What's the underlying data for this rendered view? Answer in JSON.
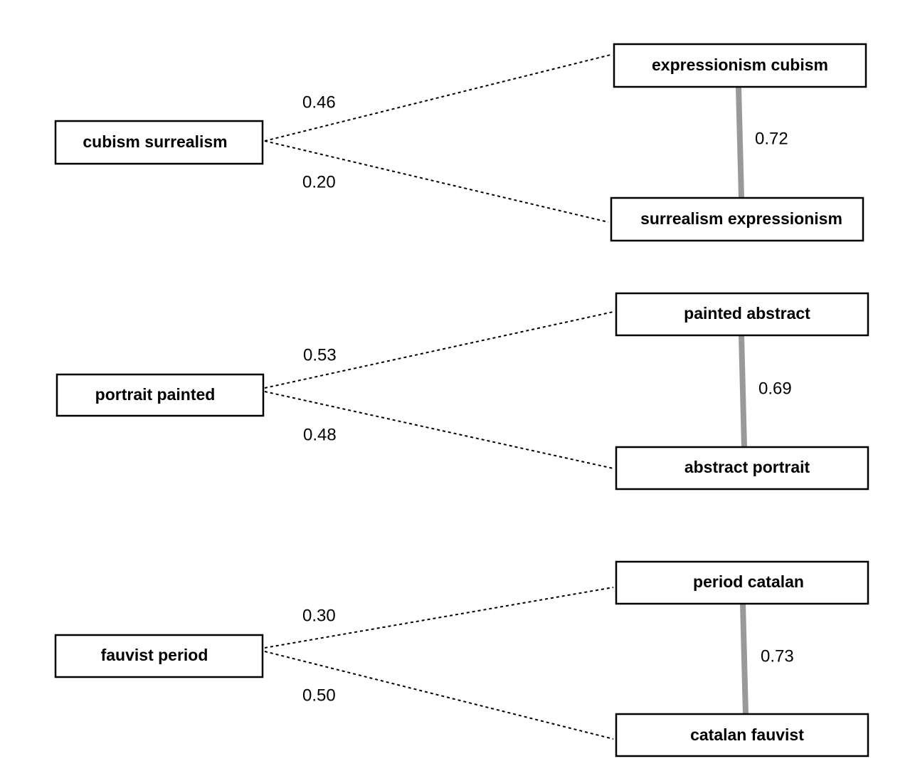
{
  "diagram": {
    "groups": [
      {
        "source": "cubism surrealism",
        "target_top": "expressionism cubism",
        "target_bottom": "surrealism expressionism",
        "score_top": "0.46",
        "score_bottom": "0.20",
        "score_link": "0.72"
      },
      {
        "source": "portrait painted",
        "target_top": "painted abstract",
        "target_bottom": "abstract portrait",
        "score_top": "0.53",
        "score_bottom": "0.48",
        "score_link": "0.69"
      },
      {
        "source": "fauvist period",
        "target_top": "period catalan",
        "target_bottom": "catalan fauvist",
        "score_top": "0.30",
        "score_bottom": "0.50",
        "score_link": "0.73"
      }
    ],
    "colors": {
      "dashed_edge": "#000000",
      "link_edge": "#999999",
      "box_border": "#000000"
    }
  }
}
